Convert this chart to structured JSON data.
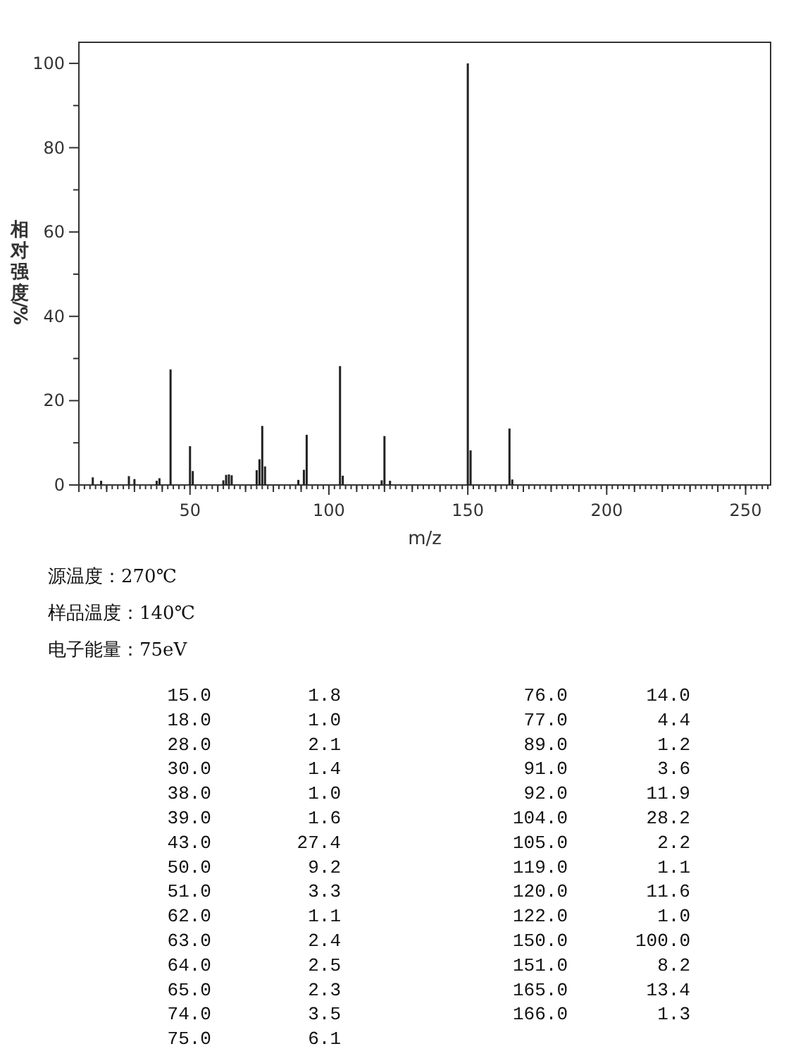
{
  "chart_data": {
    "type": "bar",
    "xlabel": "m/z",
    "ylabel": "相对强度/%",
    "x": [
      15,
      18,
      28,
      30,
      38,
      39,
      43,
      50,
      51,
      62,
      63,
      64,
      65,
      74,
      75,
      76,
      77,
      89,
      91,
      92,
      104,
      105,
      119,
      120,
      122,
      150,
      151,
      165,
      166
    ],
    "values": [
      1.8,
      1.0,
      2.1,
      1.4,
      1.0,
      1.6,
      27.4,
      9.2,
      3.3,
      1.1,
      2.4,
      2.5,
      2.3,
      3.5,
      6.1,
      14.0,
      4.4,
      1.2,
      3.6,
      11.9,
      28.2,
      2.2,
      1.1,
      11.6,
      1.0,
      100.0,
      8.2,
      13.4,
      1.3
    ],
    "color": "#222222",
    "xlim": [
      10,
      259
    ],
    "xticks": [
      {
        "value": 10,
        "label": null
      },
      {
        "value": 20,
        "label": null
      },
      {
        "value": 30,
        "label": null
      },
      {
        "value": 40,
        "label": null
      },
      50,
      {
        "value": 60,
        "label": null
      },
      {
        "value": 70,
        "label": null
      },
      {
        "value": 80,
        "label": null
      },
      {
        "value": 90,
        "label": null
      },
      100,
      {
        "value": 110,
        "label": null
      },
      {
        "value": 120,
        "label": null
      },
      {
        "value": 130,
        "label": null
      },
      {
        "value": 140,
        "label": null
      },
      150,
      {
        "value": 160,
        "label": null
      },
      {
        "value": 170,
        "label": null
      },
      {
        "value": 180,
        "label": null
      },
      {
        "value": 190,
        "label": null
      },
      200,
      {
        "value": 210,
        "label": null
      },
      {
        "value": 220,
        "label": null
      },
      {
        "value": 230,
        "label": null
      },
      {
        "value": 240,
        "label": null
      },
      250
    ],
    "ylim": [
      0,
      105
    ],
    "yticks": [
      0,
      {
        "value": 10,
        "label": null
      },
      20,
      {
        "value": 30,
        "label": null
      },
      40,
      {
        "value": 50,
        "label": null
      },
      60,
      {
        "value": 70,
        "label": null
      },
      80,
      {
        "value": 90,
        "label": null
      },
      100
    ],
    "annotations": [
      "源温度：270℃",
      "样品温度：140℃",
      "电子能量：75eV",
      "15.0",
      "1.8",
      "18.0",
      "1.0",
      "28.0",
      "2.1",
      "30.0",
      "1.4",
      "38.0",
      "1.0",
      "39.0",
      "1.6",
      "43.0",
      "27.4",
      "50.0",
      "9.2",
      "51.0",
      "3.3",
      "62.0",
      "1.1",
      "63.0",
      "2.4",
      "64.0",
      "2.5",
      "65.0",
      "2.3",
      "74.0",
      "3.5",
      "75.0",
      "6.1",
      "76.0",
      "14.0",
      "77.0",
      "4.4",
      "89.0",
      "1.2",
      "91.0",
      "3.6",
      "92.0",
      "11.9",
      "104.0",
      "28.2",
      "105.0",
      "2.2",
      "119.0",
      "1.1",
      "120.0",
      "11.6",
      "122.0",
      "1.0",
      "150.0",
      "100.0",
      "151.0",
      "8.2",
      "165.0",
      "13.4",
      "166.0",
      "1.3"
    ]
  }
}
